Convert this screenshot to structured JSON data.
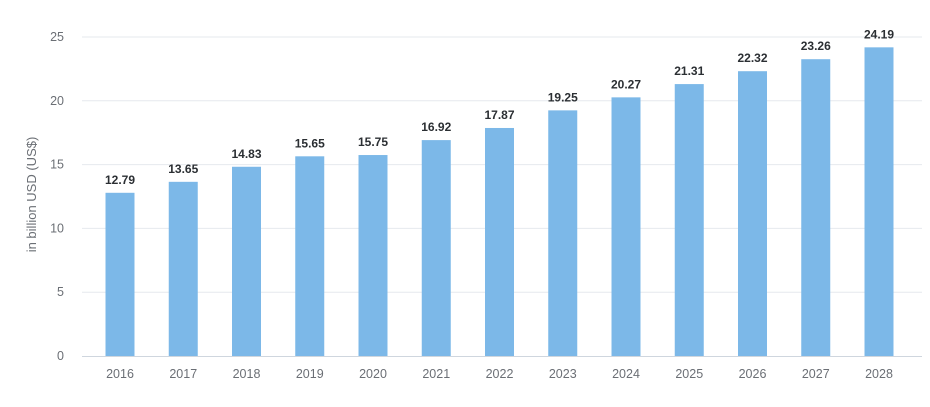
{
  "chart_data": {
    "type": "bar",
    "categories": [
      "2016",
      "2017",
      "2018",
      "2019",
      "2020",
      "2021",
      "2022",
      "2023",
      "2024",
      "2025",
      "2026",
      "2027",
      "2028"
    ],
    "series": [
      {
        "values": [
          12.79,
          13.65,
          14.83,
          15.65,
          15.75,
          16.92,
          17.87,
          19.25,
          20.27,
          21.31,
          22.32,
          23.26,
          24.19
        ],
        "color": "#7cb8e8"
      }
    ],
    "data_labels": [
      "12.79",
      "13.65",
      "14.83",
      "15.65",
      "15.75",
      "16.92",
      "17.87",
      "19.25",
      "20.27",
      "21.31",
      "22.32",
      "23.26",
      "24.19"
    ],
    "y_ticks": [
      "0",
      "5",
      "10",
      "15",
      "20",
      "25"
    ],
    "ylabel": "in billion USD (US$)",
    "xlabel": "",
    "ylim": [
      0,
      25
    ],
    "grid": true,
    "legend": "none"
  }
}
